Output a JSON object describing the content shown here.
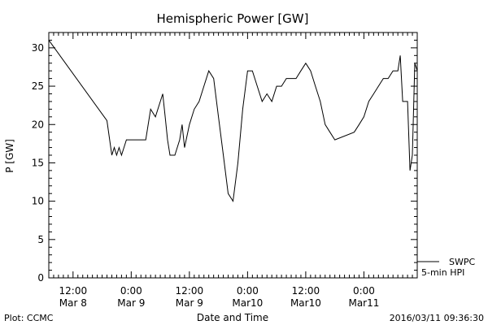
{
  "chart_data": {
    "type": "line",
    "title": "Hemispheric Power [GW]",
    "xlabel": "Date and Time",
    "ylabel": "P [GW]",
    "ylim": [
      0,
      32
    ],
    "yticks": [
      0,
      5,
      10,
      15,
      20,
      25,
      30
    ],
    "xlim": [
      "2016-03-08 07:00",
      "2016-03-11 11:00"
    ],
    "xticks": [
      {
        "t": "2016-03-08 12:00",
        "line1": "12:00",
        "line2": "Mar 8"
      },
      {
        "t": "2016-03-09 00:00",
        "line1": "0:00",
        "line2": "Mar 9"
      },
      {
        "t": "2016-03-09 12:00",
        "line1": "12:00",
        "line2": "Mar 9"
      },
      {
        "t": "2016-03-10 00:00",
        "line1": "0:00",
        "line2": "Mar10"
      },
      {
        "t": "2016-03-10 12:00",
        "line1": "12:00",
        "line2": "Mar10"
      },
      {
        "t": "2016-03-11 00:00",
        "line1": "0:00",
        "line2": "Mar11"
      }
    ],
    "grid": false,
    "series": [
      {
        "name": "SWPC 5-min HPI",
        "color": "#000000",
        "x": [
          "2016-03-08 07:00",
          "2016-03-08 19:00",
          "2016-03-08 20:00",
          "2016-03-08 20:30",
          "2016-03-08 21:00",
          "2016-03-08 21:30",
          "2016-03-08 22:00",
          "2016-03-08 22:30",
          "2016-03-08 23:00",
          "2016-03-09 00:00",
          "2016-03-09 01:00",
          "2016-03-09 02:00",
          "2016-03-09 03:00",
          "2016-03-09 04:00",
          "2016-03-09 05:00",
          "2016-03-09 06:00",
          "2016-03-09 06:30",
          "2016-03-09 07:00",
          "2016-03-09 07:30",
          "2016-03-09 08:00",
          "2016-03-09 09:00",
          "2016-03-09 10:00",
          "2016-03-09 10:30",
          "2016-03-09 11:00",
          "2016-03-09 12:00",
          "2016-03-09 13:00",
          "2016-03-09 14:00",
          "2016-03-09 15:00",
          "2016-03-09 16:00",
          "2016-03-09 17:00",
          "2016-03-09 18:00",
          "2016-03-09 19:00",
          "2016-03-09 20:00",
          "2016-03-09 21:00",
          "2016-03-09 22:00",
          "2016-03-09 23:00",
          "2016-03-10 00:00",
          "2016-03-10 01:00",
          "2016-03-10 02:00",
          "2016-03-10 03:00",
          "2016-03-10 04:00",
          "2016-03-10 05:00",
          "2016-03-10 06:00",
          "2016-03-10 07:00",
          "2016-03-10 08:00",
          "2016-03-10 09:00",
          "2016-03-10 10:00",
          "2016-03-10 11:00",
          "2016-03-10 12:00",
          "2016-03-10 13:00",
          "2016-03-10 14:00",
          "2016-03-10 15:00",
          "2016-03-10 16:00",
          "2016-03-10 17:00",
          "2016-03-10 18:00",
          "2016-03-10 22:00",
          "2016-03-10 23:00",
          "2016-03-11 00:00",
          "2016-03-11 01:00",
          "2016-03-11 02:00",
          "2016-03-11 03:00",
          "2016-03-11 04:00",
          "2016-03-11 05:00",
          "2016-03-11 06:00",
          "2016-03-11 07:00",
          "2016-03-11 07:30",
          "2016-03-11 08:00",
          "2016-03-11 09:00",
          "2016-03-11 09:30",
          "2016-03-11 10:00",
          "2016-03-11 10:30",
          "2016-03-11 11:00"
        ],
        "y": [
          31,
          20.5,
          16,
          17,
          16,
          17,
          16,
          17,
          18,
          18,
          18,
          18,
          18,
          22,
          21,
          23,
          24,
          21,
          18,
          16,
          16,
          18,
          20,
          17,
          20,
          22,
          23,
          25,
          27,
          26,
          21,
          16,
          11,
          10,
          15,
          22,
          27,
          27,
          25,
          23,
          24,
          23,
          25,
          25,
          26,
          26,
          26,
          27,
          28,
          27,
          25,
          23,
          20,
          19,
          18,
          19,
          20,
          21,
          23,
          24,
          25,
          26,
          26,
          27,
          27,
          29,
          23,
          23,
          14,
          16,
          28,
          27
        ]
      }
    ]
  },
  "legend": {
    "line1": "SWPC",
    "line2": "5-min HPI"
  },
  "footer": {
    "left": "Plot: CCMC",
    "right": "2016/03/11 09:36:30"
  }
}
